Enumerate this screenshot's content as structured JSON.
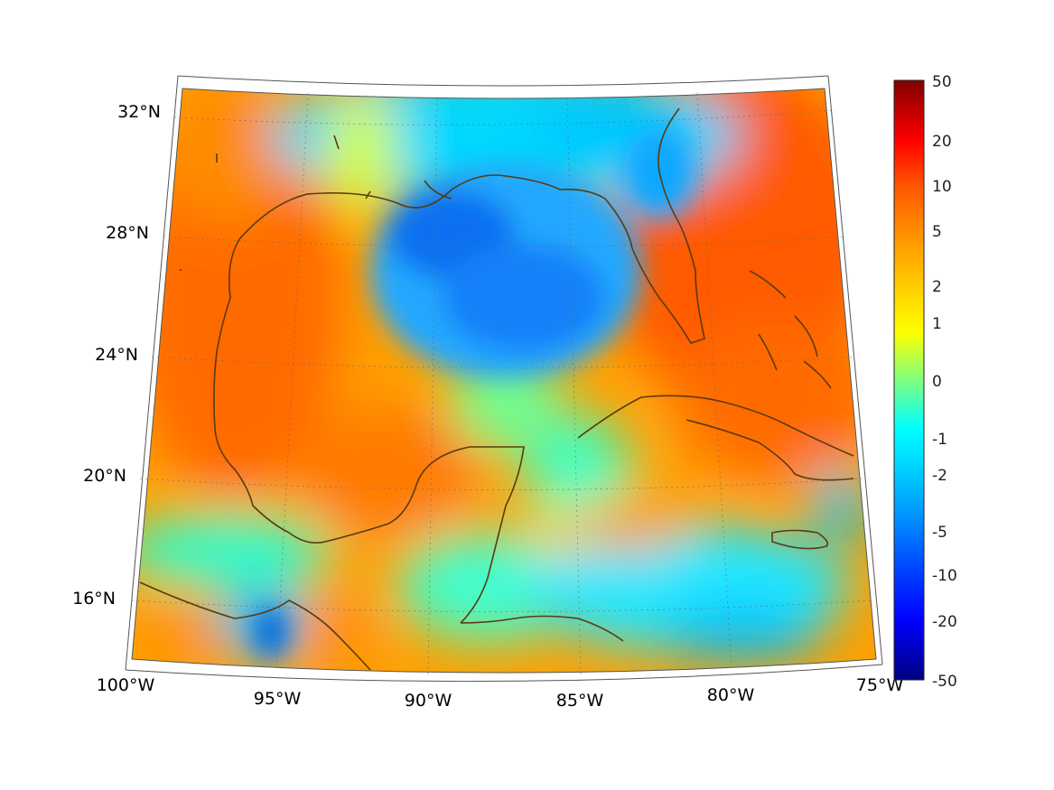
{
  "map": {
    "projection": "lambert-conformal",
    "lon_range": [
      -100,
      -75
    ],
    "lat_range": [
      14,
      33
    ],
    "coastline_color": "#5a3a12",
    "graticule": true,
    "field_palette": "jet"
  },
  "axes": {
    "lat_ticks": [
      {
        "value": 32,
        "label": "32°N"
      },
      {
        "value": 28,
        "label": "28°N"
      },
      {
        "value": 24,
        "label": "24°N"
      },
      {
        "value": 20,
        "label": "20°N"
      },
      {
        "value": 16,
        "label": "16°N"
      }
    ],
    "lon_ticks": [
      {
        "value": -100,
        "label": "100°W"
      },
      {
        "value": -95,
        "label": "95°W"
      },
      {
        "value": -90,
        "label": "90°W"
      },
      {
        "value": -85,
        "label": "85°W"
      },
      {
        "value": -80,
        "label": "80°W"
      },
      {
        "value": -75,
        "label": "75°W"
      }
    ]
  },
  "colorbar": {
    "scale": "symlog",
    "range": [
      -50,
      50
    ],
    "labels": [
      "50",
      "20",
      "10",
      "5",
      "2",
      "1",
      "0",
      "-1",
      "-2",
      "-5",
      "-10",
      "-20",
      "-50"
    ]
  },
  "fields": {
    "summary": "positive values over land margins and Atlantic, negative center over Gulf of Mexico"
  }
}
